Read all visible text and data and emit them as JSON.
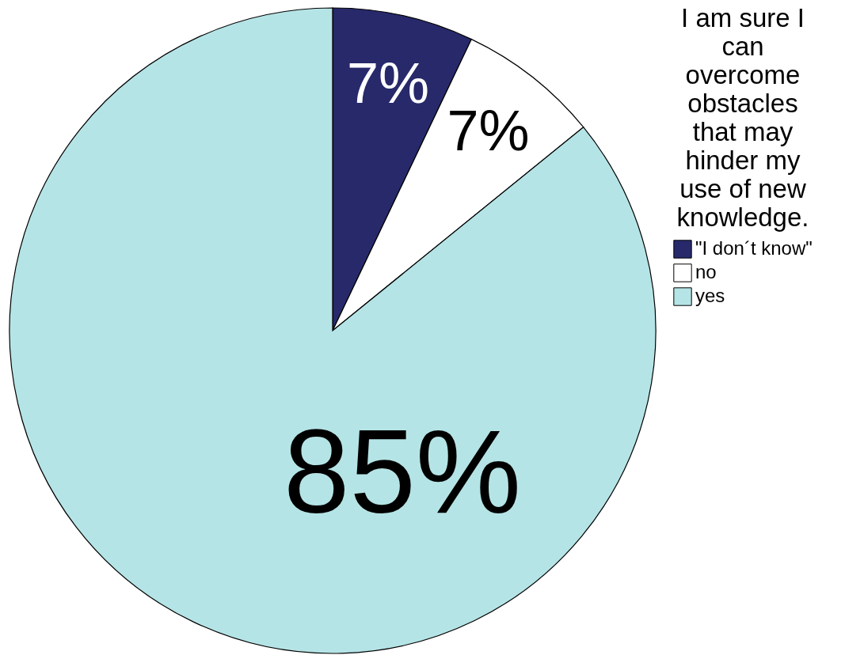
{
  "chart_data": {
    "type": "pie",
    "legend_title": "I am sure I can overcome obstacles that may hinder my use of new knowledge.",
    "categories": [
      "\"I don´t know\"",
      "no",
      "yes"
    ],
    "values": [
      7,
      7,
      85
    ],
    "colors": [
      "#27296b",
      "#ffffff",
      "#b5e4e6"
    ],
    "value_labels": [
      "7%",
      "7%",
      "85%"
    ],
    "legend": "right"
  }
}
